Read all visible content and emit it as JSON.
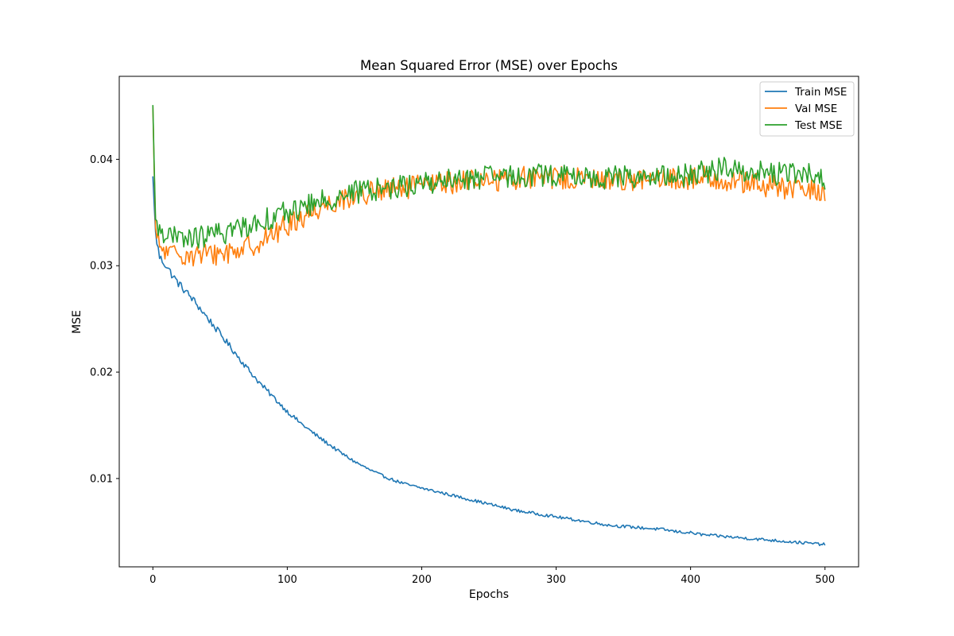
{
  "chart_data": {
    "type": "line",
    "title": "Mean Squared Error (MSE) over Epochs",
    "xlabel": "Epochs",
    "ylabel": "MSE",
    "xlim": [
      -25,
      525
    ],
    "ylim": [
      0.0017,
      0.0478
    ],
    "xticks": [
      0,
      100,
      200,
      300,
      400,
      500
    ],
    "yticks": [
      0.01,
      0.02,
      0.03,
      0.04
    ],
    "xtick_labels": [
      "0",
      "100",
      "200",
      "300",
      "400",
      "500"
    ],
    "ytick_labels": [
      "0.01",
      "0.02",
      "0.03",
      "0.04"
    ],
    "grid": false,
    "legend_position": "top-right",
    "series": [
      {
        "name": "Train MSE",
        "color": "#1f77b4",
        "noise_amplitude": 0.0004,
        "x": [
          0,
          2,
          5,
          10,
          15,
          20,
          30,
          40,
          50,
          60,
          70,
          80,
          90,
          100,
          110,
          120,
          130,
          140,
          150,
          160,
          170,
          180,
          190,
          200,
          210,
          220,
          230,
          240,
          250,
          260,
          270,
          280,
          290,
          300,
          310,
          320,
          330,
          340,
          350,
          360,
          370,
          380,
          390,
          400,
          410,
          420,
          430,
          440,
          450,
          460,
          470,
          480,
          490,
          500
        ],
        "values": [
          0.0384,
          0.033,
          0.0308,
          0.03,
          0.029,
          0.0282,
          0.0268,
          0.0252,
          0.0236,
          0.022,
          0.0204,
          0.0189,
          0.0176,
          0.0163,
          0.0152,
          0.0142,
          0.0133,
          0.0124,
          0.0116,
          0.0109,
          0.0103,
          0.0098,
          0.0094,
          0.0091,
          0.0088,
          0.0085,
          0.0082,
          0.0079,
          0.0076,
          0.0073,
          0.007,
          0.0068,
          0.0066,
          0.0064,
          0.0062,
          0.006,
          0.0058,
          0.0056,
          0.0055,
          0.0054,
          0.0053,
          0.0052,
          0.005,
          0.0049,
          0.0047,
          0.0046,
          0.0045,
          0.0044,
          0.0043,
          0.0042,
          0.0041,
          0.004,
          0.0039,
          0.0038
        ]
      },
      {
        "name": "Val MSE",
        "color": "#ff7f0e",
        "noise_amplitude": 0.0011,
        "x": [
          0,
          2,
          5,
          10,
          15,
          20,
          30,
          40,
          50,
          60,
          70,
          80,
          90,
          100,
          110,
          120,
          130,
          140,
          150,
          160,
          170,
          180,
          190,
          200,
          210,
          220,
          230,
          240,
          250,
          260,
          270,
          280,
          290,
          300,
          310,
          320,
          330,
          340,
          350,
          360,
          370,
          380,
          390,
          400,
          410,
          420,
          430,
          440,
          450,
          460,
          470,
          480,
          490,
          500
        ],
        "values": [
          0.045,
          0.033,
          0.0318,
          0.0312,
          0.031,
          0.0312,
          0.031,
          0.031,
          0.0312,
          0.0314,
          0.0318,
          0.0323,
          0.033,
          0.0338,
          0.0345,
          0.0352,
          0.0358,
          0.0362,
          0.0366,
          0.0368,
          0.037,
          0.0372,
          0.0373,
          0.0375,
          0.0377,
          0.0378,
          0.0379,
          0.038,
          0.0381,
          0.0381,
          0.0382,
          0.0383,
          0.0383,
          0.0383,
          0.0382,
          0.0381,
          0.038,
          0.0381,
          0.0382,
          0.0381,
          0.038,
          0.038,
          0.0381,
          0.0382,
          0.0383,
          0.0382,
          0.038,
          0.0378,
          0.0376,
          0.0374,
          0.0373,
          0.0372,
          0.0371,
          0.0368
        ]
      },
      {
        "name": "Test MSE",
        "color": "#2ca02c",
        "noise_amplitude": 0.0011,
        "x": [
          0,
          2,
          5,
          10,
          15,
          20,
          30,
          40,
          50,
          60,
          70,
          80,
          90,
          100,
          110,
          120,
          130,
          140,
          150,
          160,
          170,
          180,
          190,
          200,
          210,
          220,
          230,
          240,
          250,
          260,
          270,
          280,
          290,
          300,
          310,
          320,
          330,
          340,
          350,
          360,
          370,
          380,
          390,
          400,
          410,
          420,
          430,
          440,
          450,
          460,
          470,
          480,
          490,
          500
        ],
        "values": [
          0.0451,
          0.0336,
          0.0336,
          0.033,
          0.0326,
          0.0325,
          0.0326,
          0.0328,
          0.033,
          0.0334,
          0.0338,
          0.0342,
          0.0346,
          0.035,
          0.0354,
          0.0358,
          0.0362,
          0.0366,
          0.0369,
          0.0371,
          0.0373,
          0.0374,
          0.0376,
          0.0377,
          0.0379,
          0.038,
          0.0381,
          0.0382,
          0.0383,
          0.0383,
          0.0384,
          0.0385,
          0.0385,
          0.0385,
          0.0384,
          0.0383,
          0.0382,
          0.0383,
          0.0384,
          0.0384,
          0.0383,
          0.0383,
          0.0384,
          0.0386,
          0.0388,
          0.039,
          0.0392,
          0.039,
          0.0388,
          0.0387,
          0.0386,
          0.0386,
          0.0386,
          0.038
        ]
      }
    ]
  }
}
